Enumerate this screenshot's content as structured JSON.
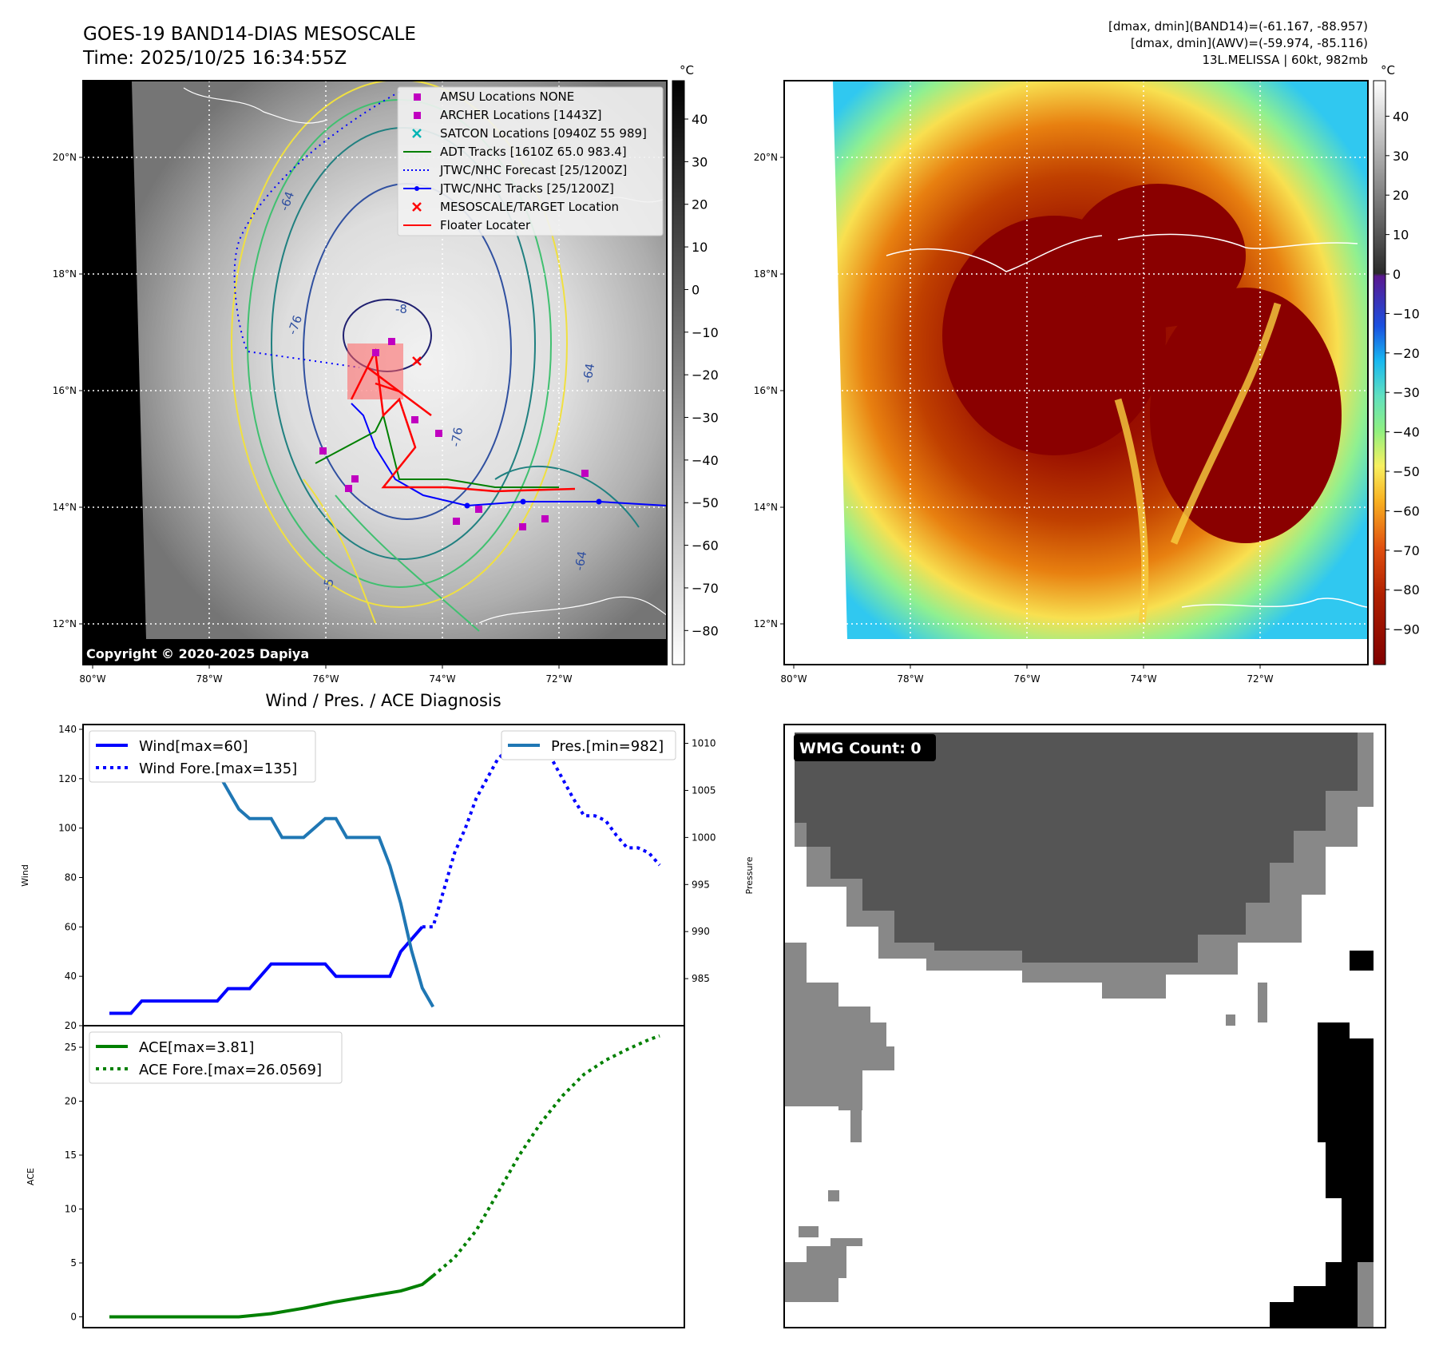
{
  "header": {
    "title_line1": "GOES-19 BAND14-DIAS MESOSCALE",
    "title_line2": "Time: 2025/10/25 16:34:55Z",
    "stats_line1": "[dmax, dmin](BAND14)=(-61.167, -88.957)",
    "stats_line2": "[dmax, dmin](AWV)=(-59.974, -85.116)",
    "stats_line3": "13L.MELISSA | 60kt, 982mb"
  },
  "map": {
    "lat_ticks": [
      "20°N",
      "18°N",
      "16°N",
      "14°N",
      "12°N"
    ],
    "lon_ticks": [
      "80°W",
      "78°W",
      "76°W",
      "74°W",
      "72°W"
    ],
    "copyright": "Copyright © 2020-2025 Dapiya",
    "contour_labels": [
      "-64",
      "-76",
      "-8",
      "-76",
      "-64",
      "-5",
      "-64"
    ],
    "legend": [
      {
        "label": "AMSU Locations NONE",
        "color": "#c000c0",
        "marker": "square"
      },
      {
        "label": "ARCHER Locations [1443Z]",
        "color": "#c000c0",
        "marker": "square"
      },
      {
        "label": "SATCON Locations [0940Z 55 989]",
        "color": "#00b4b4",
        "marker": "x"
      },
      {
        "label": "ADT Tracks [1610Z 65.0 983.4]",
        "color": "#008000",
        "marker": "line"
      },
      {
        "label": "JTWC/NHC Forecast [25/1200Z]",
        "color": "#0000ff",
        "marker": "dotted"
      },
      {
        "label": "JTWC/NHC Tracks [25/1200Z]",
        "color": "#0000ff",
        "marker": "line-dot"
      },
      {
        "label": "MESOSCALE/TARGET Location",
        "color": "#ff0000",
        "marker": "x"
      },
      {
        "label": "Floater Locater",
        "color": "#ff0000",
        "marker": "line"
      }
    ],
    "colorbar_gray": {
      "unit": "°C",
      "ticks": [
        "40",
        "30",
        "20",
        "10",
        "0",
        "−10",
        "−20",
        "−30",
        "−40",
        "−50",
        "−60",
        "−70",
        "−80"
      ]
    },
    "colorbar_color": {
      "unit": "°C",
      "ticks": [
        "40",
        "30",
        "20",
        "10",
        "0",
        "−10",
        "−20",
        "−30",
        "−40",
        "−50",
        "−60",
        "−70",
        "−80",
        "−90"
      ]
    }
  },
  "chart_data": [
    {
      "type": "line",
      "title": "Wind / Pres. / ACE Diagnosis",
      "ylabel": "Wind",
      "ylabel2": "Pressure",
      "ylim": [
        20,
        140
      ],
      "ylim2": [
        980,
        1012
      ],
      "yticks": [
        "140",
        "120",
        "100",
        "80",
        "60",
        "40",
        "20"
      ],
      "yticks2": [
        "1010",
        "1005",
        "1000",
        "995",
        "990",
        "985"
      ],
      "legend_left": [
        "Wind[max=60]",
        "Wind Fore.[max=135]"
      ],
      "legend_right": [
        "Pres.[min=982]"
      ],
      "x": [
        0,
        1,
        2,
        3,
        4,
        5,
        6,
        7,
        8,
        9,
        10,
        11,
        12,
        13,
        14,
        15,
        16,
        17,
        18,
        19,
        20,
        21,
        22,
        23,
        24,
        25,
        26,
        27,
        28,
        29,
        30,
        31,
        32,
        33,
        34,
        35,
        36,
        37,
        38,
        39,
        40,
        41,
        42,
        43,
        44,
        45,
        46,
        47,
        48,
        49,
        50,
        51
      ],
      "series": [
        {
          "name": "Wind[max=60]",
          "color": "#0000ff",
          "style": "solid",
          "x": [
            0,
            1,
            2,
            3,
            4,
            5,
            6,
            7,
            8,
            9,
            10,
            11,
            12,
            13,
            14,
            15,
            16,
            17,
            18,
            19,
            20,
            21,
            22,
            23,
            24,
            25,
            26,
            27,
            28,
            29
          ],
          "values": [
            25,
            25,
            25,
            30,
            30,
            30,
            30,
            30,
            30,
            30,
            30,
            35,
            35,
            35,
            40,
            45,
            45,
            45,
            45,
            45,
            45,
            40,
            40,
            40,
            40,
            40,
            40,
            50,
            55,
            60
          ]
        },
        {
          "name": "Wind Fore.[max=135]",
          "color": "#0000ff",
          "style": "dotted",
          "x": [
            29,
            30,
            31,
            32,
            33,
            34,
            35,
            36,
            37,
            38,
            39,
            40,
            41,
            42,
            43,
            44,
            45,
            46,
            47,
            48,
            49,
            50,
            51
          ],
          "values": [
            60,
            60,
            75,
            90,
            100,
            112,
            120,
            128,
            132,
            135,
            132,
            130,
            128,
            120,
            112,
            105,
            105,
            103,
            97,
            92,
            92,
            90,
            85
          ]
        },
        {
          "name": "Pres.[min=982]",
          "color": "#1f77b4",
          "style": "solid",
          "axis": "right",
          "x": [
            0,
            1,
            2,
            3,
            4,
            5,
            6,
            7,
            8,
            9,
            10,
            11,
            12,
            13,
            14,
            15,
            16,
            17,
            18,
            19,
            20,
            21,
            22,
            23,
            24,
            25,
            26,
            27,
            28,
            29,
            30
          ],
          "values": [
            1010,
            1010,
            1010,
            1010,
            1009,
            1009,
            1008,
            1008,
            1007,
            1007,
            1007,
            1005,
            1003,
            1002,
            1002,
            1002,
            1000,
            1000,
            1000,
            1001,
            1002,
            1002,
            1000,
            1000,
            1000,
            1000,
            997,
            993,
            988,
            984,
            982
          ]
        }
      ]
    },
    {
      "type": "line",
      "ylabel": "ACE",
      "ylim": [
        -1,
        27
      ],
      "yticks": [
        "25",
        "20",
        "15",
        "10",
        "5",
        "0"
      ],
      "legend": [
        "ACE[max=3.81]",
        "ACE Fore.[max=26.0569]"
      ],
      "series": [
        {
          "name": "ACE[max=3.81]",
          "color": "#008000",
          "style": "solid",
          "x": [
            0,
            4,
            8,
            12,
            15,
            18,
            21,
            24,
            27,
            29,
            30
          ],
          "values": [
            0,
            0,
            0,
            0,
            0.3,
            0.8,
            1.4,
            1.9,
            2.4,
            3.0,
            3.81
          ]
        },
        {
          "name": "ACE Fore.[max=26.0569]",
          "color": "#008000",
          "style": "dotted",
          "x": [
            30,
            32,
            34,
            36,
            38,
            40,
            42,
            44,
            46,
            48,
            50,
            51
          ],
          "values": [
            3.81,
            5.5,
            8,
            11.5,
            15,
            18,
            20.5,
            22.5,
            23.8,
            24.8,
            25.7,
            26.0569
          ]
        }
      ]
    }
  ],
  "wmg": {
    "label": "WMG Count: 0"
  }
}
